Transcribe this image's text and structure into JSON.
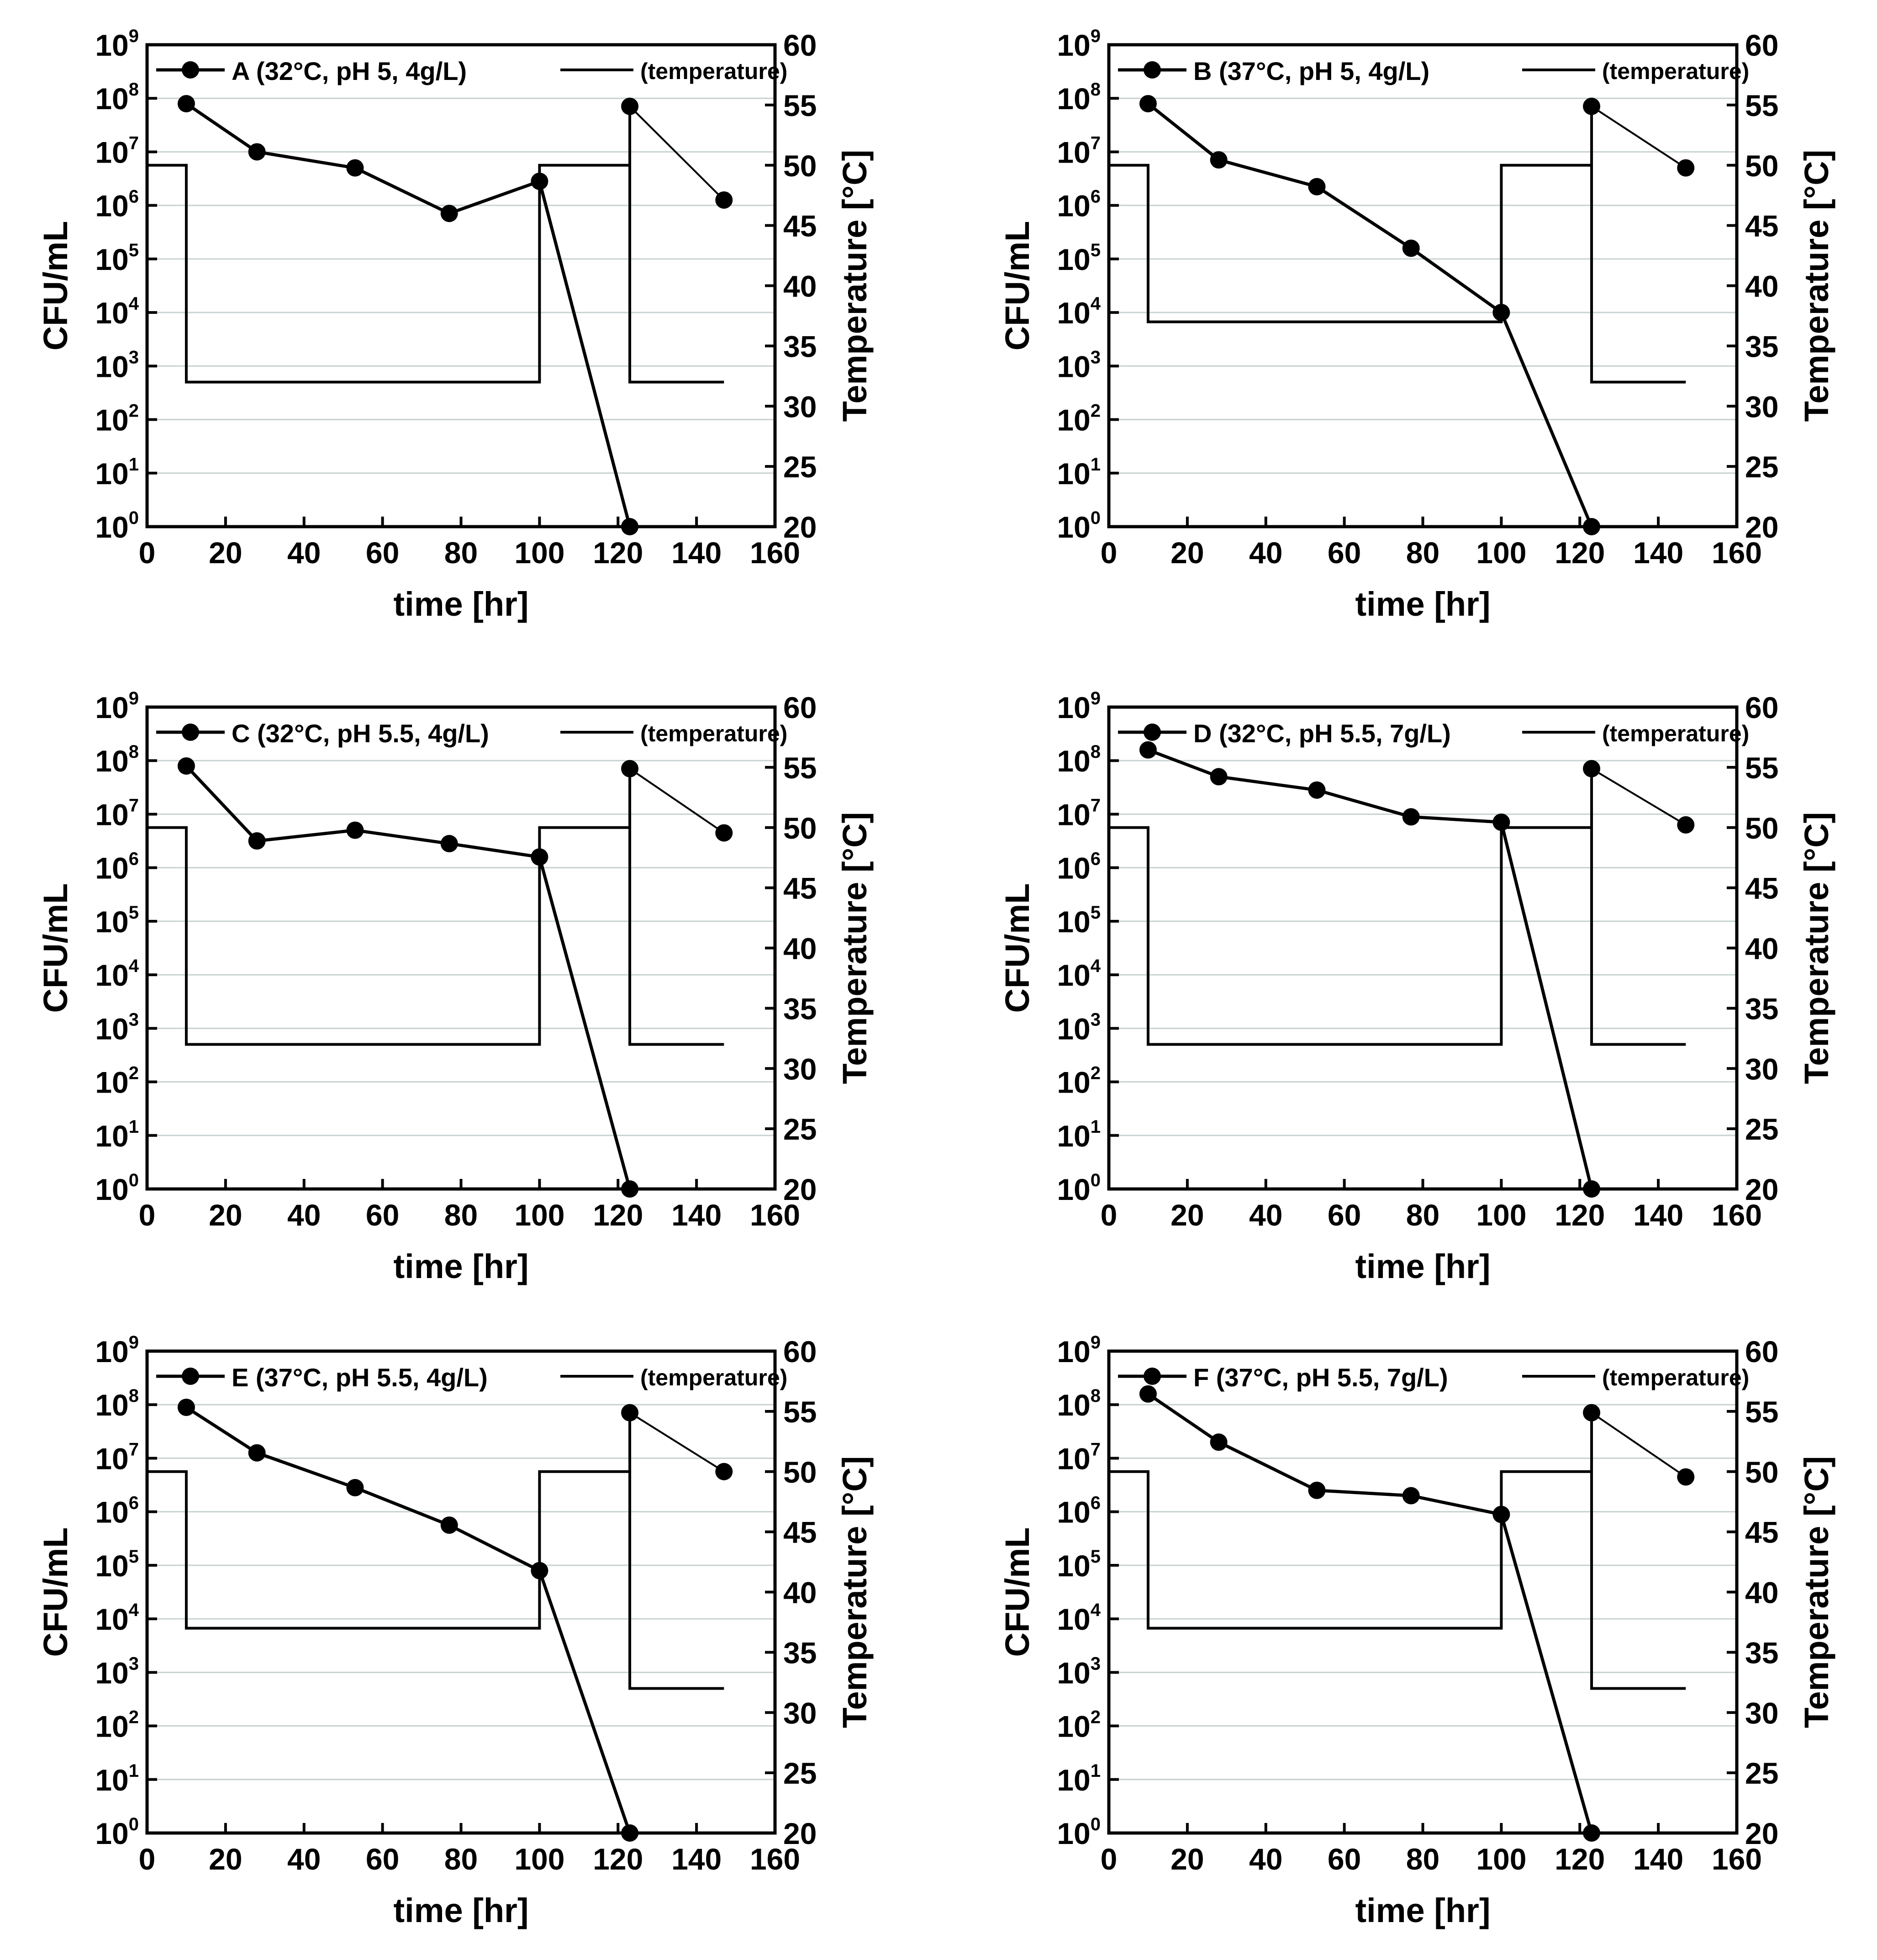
{
  "figure": {
    "shared_axes": {
      "xlabel": "time [hr]",
      "ylabel_left": "CFU/mL",
      "ylabel_right": "Temperature [°C]",
      "x_ticks": [
        0,
        20,
        40,
        60,
        80,
        100,
        120,
        140,
        160
      ],
      "xlim": [
        0,
        160
      ],
      "y_left_exponents": [
        0,
        1,
        2,
        3,
        4,
        5,
        6,
        7,
        8,
        9
      ],
      "y_left_base": "10",
      "ylim_left_log10": [
        0,
        9
      ],
      "y_right_ticks": [
        20,
        25,
        30,
        35,
        40,
        45,
        50,
        55,
        60
      ],
      "ylim_right": [
        20,
        60
      ],
      "horizontal_gridlines": true
    }
  },
  "chart_data": [
    {
      "type": "line",
      "panel": "A",
      "legend_cfu": "A (32°C, pH 5, 4g/L)",
      "legend_temp": "(temperature)",
      "cfu_series_log10": {
        "x": [
          10,
          28,
          53,
          77,
          100,
          123
        ],
        "y": [
          7.9,
          7.0,
          6.7,
          5.85,
          6.45,
          0
        ]
      },
      "cfu_series2_log10": {
        "x": [
          123,
          147
        ],
        "y": [
          7.85,
          6.1
        ]
      },
      "temperature": {
        "x": [
          0,
          10,
          10,
          100,
          100,
          123,
          123,
          123,
          147
        ],
        "y": [
          50,
          50,
          32,
          32,
          50,
          50,
          55,
          32,
          32
        ]
      }
    },
    {
      "type": "line",
      "panel": "B",
      "legend_cfu": "B (37°C, pH 5, 4g/L)",
      "legend_temp": "(temperature)",
      "cfu_series_log10": {
        "x": [
          10,
          28,
          53,
          77,
          100,
          123
        ],
        "y": [
          7.9,
          6.85,
          6.35,
          5.2,
          4.0,
          0
        ]
      },
      "cfu_series2_log10": {
        "x": [
          123,
          147
        ],
        "y": [
          7.85,
          6.7
        ]
      },
      "temperature": {
        "x": [
          0,
          10,
          10,
          100,
          100,
          123,
          123,
          123,
          147
        ],
        "y": [
          50,
          50,
          37,
          37,
          50,
          50,
          55,
          32,
          32
        ]
      }
    },
    {
      "type": "line",
      "panel": "C",
      "legend_cfu": "C (32°C, pH 5.5, 4g/L)",
      "legend_temp": "(temperature)",
      "cfu_series_log10": {
        "x": [
          10,
          28,
          53,
          77,
          100,
          123
        ],
        "y": [
          7.9,
          6.5,
          6.7,
          6.45,
          6.2,
          0
        ]
      },
      "cfu_series2_log10": {
        "x": [
          123,
          147
        ],
        "y": [
          7.85,
          6.65
        ]
      },
      "temperature": {
        "x": [
          0,
          10,
          10,
          100,
          100,
          123,
          123,
          123,
          147
        ],
        "y": [
          50,
          50,
          32,
          32,
          50,
          50,
          55,
          32,
          32
        ]
      }
    },
    {
      "type": "line",
      "panel": "D",
      "legend_cfu": "D (32°C, pH 5.5, 7g/L)",
      "legend_temp": "(temperature)",
      "cfu_series_log10": {
        "x": [
          10,
          28,
          53,
          77,
          100,
          123
        ],
        "y": [
          8.2,
          7.7,
          7.45,
          6.95,
          6.85,
          0
        ]
      },
      "cfu_series2_log10": {
        "x": [
          123,
          147
        ],
        "y": [
          7.85,
          6.8
        ]
      },
      "temperature": {
        "x": [
          0,
          10,
          10,
          100,
          100,
          123,
          123,
          123,
          147
        ],
        "y": [
          50,
          50,
          32,
          32,
          50,
          50,
          55,
          32,
          32
        ]
      }
    },
    {
      "type": "line",
      "panel": "E",
      "legend_cfu": "E (37°C, pH 5.5, 4g/L)",
      "legend_temp": "(temperature)",
      "cfu_series_log10": {
        "x": [
          10,
          28,
          53,
          77,
          100,
          123
        ],
        "y": [
          7.95,
          7.1,
          6.45,
          5.75,
          4.9,
          0
        ]
      },
      "cfu_series2_log10": {
        "x": [
          123,
          147
        ],
        "y": [
          7.85,
          6.75
        ]
      },
      "temperature": {
        "x": [
          0,
          10,
          10,
          100,
          100,
          123,
          123,
          123,
          147
        ],
        "y": [
          50,
          50,
          37,
          37,
          50,
          50,
          55,
          32,
          32
        ]
      }
    },
    {
      "type": "line",
      "panel": "F",
      "legend_cfu": "F (37°C, pH 5.5, 7g/L)",
      "legend_temp": "(temperature)",
      "cfu_series_log10": {
        "x": [
          10,
          28,
          53,
          77,
          100,
          123
        ],
        "y": [
          8.2,
          7.3,
          6.4,
          6.3,
          5.95,
          0
        ]
      },
      "cfu_series2_log10": {
        "x": [
          123,
          147
        ],
        "y": [
          7.85,
          6.65
        ]
      },
      "temperature": {
        "x": [
          0,
          10,
          10,
          100,
          100,
          123,
          123,
          123,
          147
        ],
        "y": [
          50,
          50,
          37,
          37,
          50,
          50,
          55,
          32,
          32
        ]
      }
    }
  ]
}
